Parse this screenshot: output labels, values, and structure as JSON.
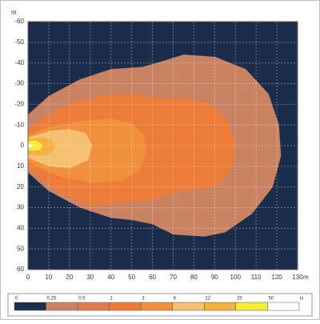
{
  "chart_data": {
    "type": "contour",
    "x_label": "m",
    "y_label": "m",
    "xlim": [
      0,
      130
    ],
    "xticks": [
      0,
      10,
      20,
      30,
      40,
      50,
      60,
      70,
      80,
      90,
      100,
      110,
      120,
      130
    ],
    "ylim": [
      -60,
      60
    ],
    "yticks": [
      -60,
      -50,
      -40,
      -30,
      -20,
      -10,
      0,
      10,
      20,
      30,
      40,
      50,
      60
    ],
    "y_inverted": true,
    "grid": true,
    "levels": [
      0,
      0.25,
      0.5,
      1,
      3,
      6,
      12,
      25,
      50
    ],
    "level_colors": [
      "#1b2d4b",
      "#c98363",
      "#dd7f4d",
      "#ec7c38",
      "#f0903c",
      "#f5c072",
      "#f4b040",
      "#f6ec3c",
      "#ffffff"
    ],
    "unit": "lx"
  }
}
